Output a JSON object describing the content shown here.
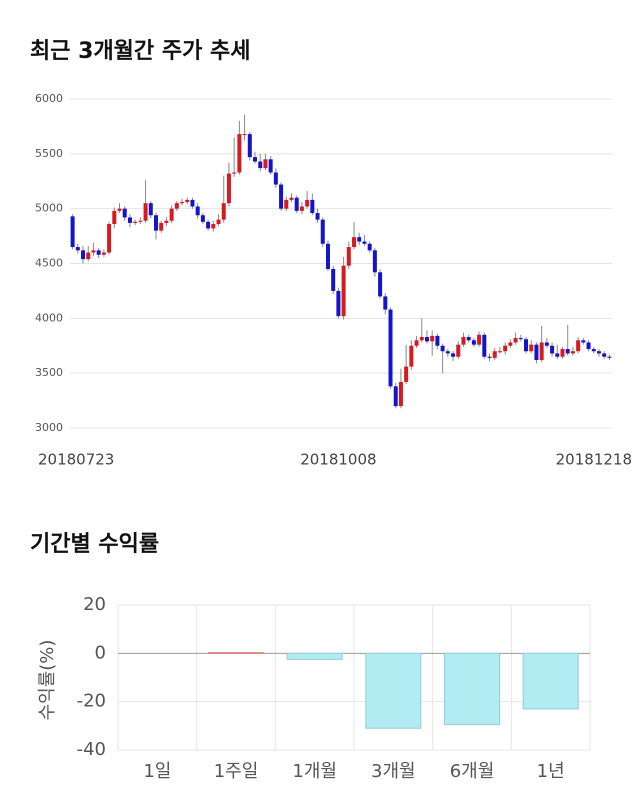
{
  "chart_data": [
    {
      "type": "candlestick",
      "title": "최근 3개월간 주가 추세",
      "categories": [
        "20180723",
        null,
        null,
        null,
        null,
        null,
        null,
        null,
        null,
        null,
        null,
        null,
        null,
        null,
        null,
        null,
        null,
        null,
        null,
        null,
        null,
        null,
        null,
        null,
        null,
        null,
        null,
        null,
        null,
        null,
        null,
        null,
        null,
        null,
        null,
        null,
        null,
        null,
        null,
        null,
        null,
        null,
        null,
        null,
        null,
        null,
        null,
        null,
        null,
        null,
        null,
        "20181008",
        null,
        null,
        null,
        null,
        null,
        null,
        null,
        null,
        null,
        null,
        null,
        null,
        null,
        null,
        null,
        null,
        null,
        null,
        null,
        null,
        null,
        null,
        null,
        null,
        null,
        null,
        null,
        null,
        null,
        null,
        null,
        null,
        null,
        null,
        null,
        null,
        null,
        null,
        null,
        null,
        null,
        null,
        null,
        null,
        null,
        null,
        null,
        null,
        null,
        null,
        null,
        "20181218"
      ],
      "open": [
        4930,
        4650,
        4620,
        4540,
        4600,
        4620,
        4580,
        4600,
        4860,
        4980,
        5000,
        4920,
        4870,
        4880,
        4890,
        5050,
        4940,
        4800,
        4870,
        4890,
        5000,
        5050,
        5060,
        5080,
        5020,
        4940,
        4880,
        4820,
        4860,
        4900,
        5050,
        5320,
        5330,
        5680,
        5680,
        5470,
        5430,
        5370,
        5450,
        5330,
        5220,
        5000,
        5080,
        5100,
        4980,
        5020,
        5080,
        4960,
        4900,
        4680,
        4450,
        4250,
        4020,
        4480,
        4650,
        4740,
        4700,
        4680,
        4620,
        4420,
        4200,
        4080,
        3380,
        3200,
        3420,
        3560,
        3750,
        3800,
        3830,
        3790,
        3840,
        3750,
        3700,
        3680,
        3650,
        3760,
        3830,
        3800,
        3760,
        3850,
        3650,
        3640,
        3700,
        3700,
        3750,
        3780,
        3820,
        3810,
        3700,
        3760,
        3620,
        3780,
        3750,
        3680,
        3650,
        3720,
        3680,
        3700,
        3800,
        3780,
        3720,
        3700,
        3680,
        3650
      ],
      "high": [
        4950,
        4680,
        4660,
        4660,
        4690,
        4640,
        4630,
        4880,
        5010,
        5050,
        5020,
        4950,
        4900,
        4920,
        5260,
        5070,
        4960,
        4890,
        4920,
        5030,
        5070,
        5090,
        5100,
        5100,
        5050,
        4960,
        4900,
        4890,
        4950,
        5300,
        5420,
        5650,
        5800,
        5860,
        5700,
        5520,
        5500,
        5500,
        5480,
        5370,
        5240,
        5110,
        5140,
        5120,
        5060,
        5160,
        5140,
        5000,
        4920,
        4710,
        4480,
        4280,
        4560,
        4700,
        4880,
        4780,
        4760,
        4700,
        4640,
        4450,
        4230,
        4100,
        3410,
        3540,
        3760,
        3800,
        3840,
        4000,
        3890,
        3890,
        3860,
        3770,
        3720,
        3700,
        3790,
        3870,
        3850,
        3820,
        3880,
        3870,
        3680,
        3730,
        3740,
        3780,
        3810,
        3870,
        3850,
        3830,
        3800,
        3780,
        3930,
        3820,
        3780,
        3760,
        3740,
        3940,
        3740,
        3830,
        3820,
        3800,
        3740,
        3720,
        3700,
        3670
      ],
      "low": [
        4630,
        4590,
        4500,
        4520,
        4570,
        4550,
        4560,
        4580,
        4820,
        4960,
        4890,
        4830,
        4850,
        4860,
        4870,
        4910,
        4720,
        4780,
        4840,
        4870,
        4980,
        5030,
        5040,
        5000,
        4910,
        4860,
        4800,
        4790,
        4840,
        4870,
        5020,
        5290,
        5310,
        5620,
        5440,
        5410,
        5340,
        5350,
        5310,
        5190,
        4980,
        4980,
        5060,
        4960,
        4950,
        5000,
        4940,
        4870,
        4650,
        4430,
        4220,
        4000,
        3990,
        4450,
        4630,
        4670,
        4660,
        4600,
        4380,
        4180,
        4040,
        3360,
        3180,
        3180,
        3400,
        3530,
        3730,
        3780,
        3770,
        3660,
        3720,
        3500,
        3650,
        3610,
        3630,
        3740,
        3780,
        3740,
        3740,
        3630,
        3610,
        3620,
        3680,
        3670,
        3730,
        3760,
        3790,
        3680,
        3680,
        3590,
        3600,
        3730,
        3650,
        3630,
        3630,
        3660,
        3660,
        3680,
        3760,
        3700,
        3680,
        3650,
        3630,
        3620
      ],
      "close": [
        4650,
        4620,
        4540,
        4600,
        4620,
        4580,
        4600,
        4860,
        4980,
        5000,
        4920,
        4870,
        4880,
        4890,
        5050,
        4940,
        4800,
        4870,
        4890,
        5000,
        5050,
        5060,
        5080,
        5020,
        4940,
        4880,
        4820,
        4860,
        4900,
        5050,
        5320,
        5330,
        5680,
        5680,
        5470,
        5430,
        5370,
        5450,
        5330,
        5220,
        5000,
        5080,
        5100,
        4980,
        5020,
        5080,
        4960,
        4900,
        4680,
        4450,
        4250,
        4020,
        4480,
        4650,
        4740,
        4700,
        4680,
        4620,
        4420,
        4200,
        4080,
        3380,
        3200,
        3420,
        3560,
        3750,
        3800,
        3830,
        3790,
        3840,
        3750,
        3700,
        3680,
        3650,
        3760,
        3830,
        3800,
        3760,
        3850,
        3650,
        3640,
        3700,
        3700,
        3750,
        3780,
        3820,
        3810,
        3700,
        3760,
        3620,
        3780,
        3750,
        3680,
        3650,
        3720,
        3680,
        3700,
        3800,
        3780,
        3720,
        3700,
        3680,
        3650,
        3640
      ],
      "up_color": "#d71920",
      "down_color": "#1414c8",
      "ylim": [
        3000,
        6000
      ],
      "yticks": [
        3000,
        3500,
        4000,
        4500,
        5000,
        5500,
        6000
      ],
      "grid": true
    },
    {
      "type": "bar",
      "title": "기간별 수익률",
      "y_label": "수익률(%)",
      "categories": [
        "1일",
        "1주일",
        "1개월",
        "3개월",
        "6개월",
        "1년"
      ],
      "values": [
        0,
        0.3,
        -2.5,
        -31,
        -29.5,
        -23
      ],
      "positive_color": "#f4a6a6",
      "negative_color": "#b3ebf2",
      "ylim": [
        -40,
        20
      ],
      "yticks": [
        -40,
        -20,
        0,
        20
      ],
      "grid": true
    }
  ]
}
